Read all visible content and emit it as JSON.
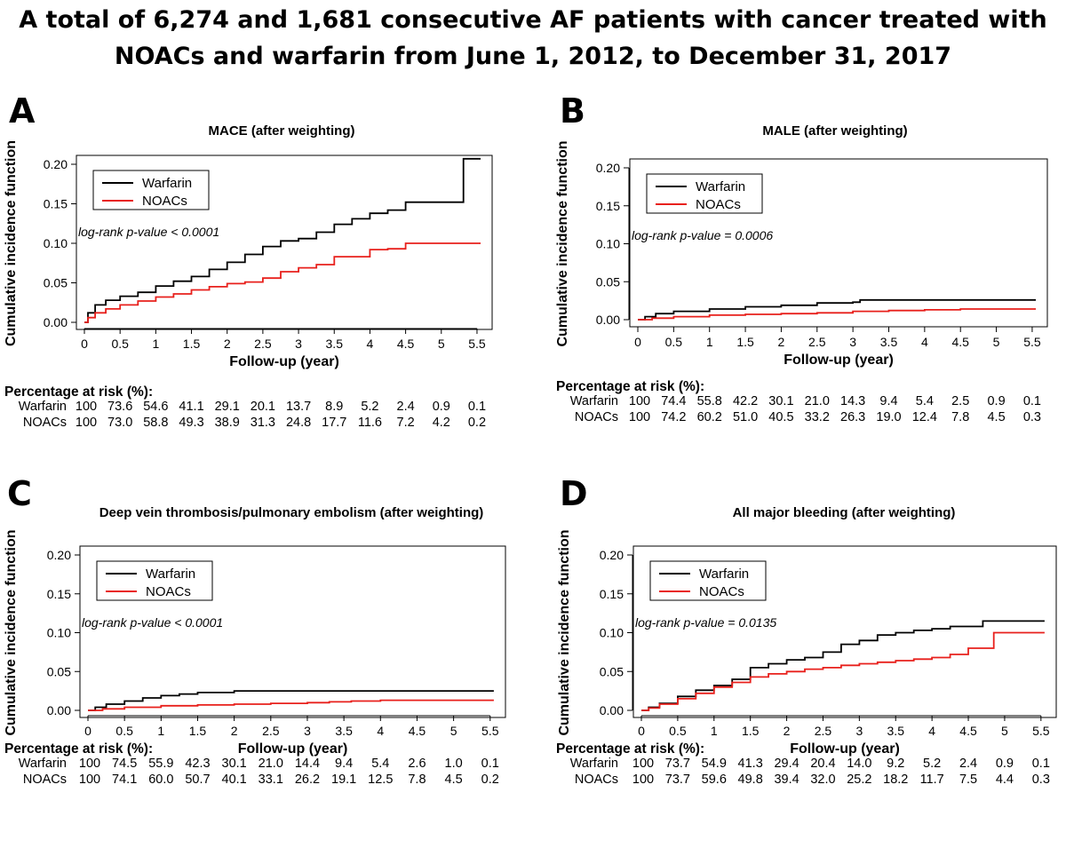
{
  "title": "A total of 6,274 and 1,681 consecutive AF patients with cancer treated with NOACs and warfarin from June 1, 2012, to December 31, 2017",
  "risk_heading": "Percentage at risk (%):",
  "colors": {
    "warfarin": "#000000",
    "noacs": "#e8201c"
  },
  "chart_data": [
    {
      "panel": "A",
      "type": "line",
      "step": true,
      "title": "MACE (after weighting)",
      "xlabel": "Follow-up (year)",
      "ylabel": "Cumulative incidence function",
      "xlim": [
        0,
        5.6
      ],
      "ylim": [
        0,
        0.2
      ],
      "xticks": [
        "0",
        "0.5",
        "1",
        "1.5",
        "2",
        "2.5",
        "3",
        "3.5",
        "4",
        "4.5",
        "5",
        "5.5"
      ],
      "yticks": [
        "0.00",
        "0.05",
        "0.10",
        "0.15",
        "0.20"
      ],
      "legend": [
        "Warfarin",
        "NOACs"
      ],
      "legend_position": "top-left",
      "annotation": "log-rank p-value < 0.0001",
      "series": [
        {
          "name": "Warfarin",
          "color": "#000000",
          "x": [
            0,
            0.05,
            0.15,
            0.3,
            0.5,
            0.75,
            1,
            1.25,
            1.5,
            1.75,
            2,
            2.25,
            2.5,
            2.75,
            3,
            3.25,
            3.5,
            3.75,
            4,
            4.25,
            4.5,
            4.75,
            5,
            5.3,
            5.31,
            5.55
          ],
          "y": [
            0,
            0.012,
            0.022,
            0.028,
            0.033,
            0.038,
            0.046,
            0.052,
            0.058,
            0.067,
            0.076,
            0.086,
            0.096,
            0.103,
            0.106,
            0.114,
            0.124,
            0.131,
            0.138,
            0.142,
            0.152,
            0.152,
            0.152,
            0.152,
            0.207,
            0.207
          ]
        },
        {
          "name": "NOACs",
          "color": "#e8201c",
          "x": [
            0,
            0.05,
            0.15,
            0.3,
            0.5,
            0.75,
            1,
            1.25,
            1.5,
            1.75,
            2,
            2.25,
            2.5,
            2.75,
            3,
            3.25,
            3.5,
            3.75,
            4,
            4.25,
            4.5,
            4.75,
            5,
            5.3,
            5.55
          ],
          "y": [
            0,
            0.006,
            0.012,
            0.017,
            0.022,
            0.027,
            0.032,
            0.036,
            0.041,
            0.045,
            0.049,
            0.051,
            0.056,
            0.064,
            0.069,
            0.073,
            0.083,
            0.083,
            0.092,
            0.093,
            0.1,
            0.1,
            0.1,
            0.1,
            0.1
          ]
        }
      ],
      "risk_table": {
        "columns": [
          "0",
          "0.5",
          "1",
          "1.5",
          "2",
          "2.5",
          "3",
          "3.5",
          "4",
          "4.5",
          "5",
          "5.5"
        ],
        "rows": [
          {
            "group": "Warfarin",
            "values": [
              "100",
              "73.6",
              "54.6",
              "41.1",
              "29.1",
              "20.1",
              "13.7",
              "8.9",
              "5.2",
              "2.4",
              "0.9",
              "0.1"
            ]
          },
          {
            "group": "NOACs",
            "values": [
              "100",
              "73.0",
              "58.8",
              "49.3",
              "38.9",
              "31.3",
              "24.8",
              "17.7",
              "11.6",
              "7.2",
              "4.2",
              "0.2"
            ]
          }
        ]
      }
    },
    {
      "panel": "B",
      "type": "line",
      "step": true,
      "title": "MALE (after weighting)",
      "xlabel": "Follow-up (year)",
      "ylabel": "Cumulative incidence function",
      "xlim": [
        0,
        5.6
      ],
      "ylim": [
        0,
        0.2
      ],
      "xticks": [
        "0",
        "0.5",
        "1",
        "1.5",
        "2",
        "2.5",
        "3",
        "3.5",
        "4",
        "4.5",
        "5",
        "5.5"
      ],
      "yticks": [
        "0.00",
        "0.05",
        "0.10",
        "0.15",
        "0.20"
      ],
      "legend": [
        "Warfarin",
        "NOACs"
      ],
      "legend_position": "top-left",
      "annotation": "log-rank p-value = 0.0006",
      "series": [
        {
          "name": "Warfarin",
          "color": "#000000",
          "x": [
            0,
            0.1,
            0.25,
            0.5,
            1,
            1.5,
            2,
            2.5,
            3,
            3.1,
            4,
            5,
            5.55
          ],
          "y": [
            0,
            0.004,
            0.008,
            0.011,
            0.014,
            0.017,
            0.019,
            0.022,
            0.023,
            0.026,
            0.026,
            0.026,
            0.026
          ]
        },
        {
          "name": "NOACs",
          "color": "#e8201c",
          "x": [
            0,
            0.2,
            0.5,
            1,
            1.5,
            2,
            2.5,
            3,
            3.5,
            4,
            4.5,
            5,
            5.55
          ],
          "y": [
            0,
            0.002,
            0.004,
            0.006,
            0.007,
            0.008,
            0.009,
            0.011,
            0.012,
            0.013,
            0.014,
            0.014,
            0.014
          ]
        }
      ],
      "risk_table": {
        "columns": [
          "0",
          "0.5",
          "1",
          "1.5",
          "2",
          "2.5",
          "3",
          "3.5",
          "4",
          "4.5",
          "5",
          "5.5"
        ],
        "rows": [
          {
            "group": "Warfarin",
            "values": [
              "100",
              "74.4",
              "55.8",
              "42.2",
              "30.1",
              "21.0",
              "14.3",
              "9.4",
              "5.4",
              "2.5",
              "0.9",
              "0.1"
            ]
          },
          {
            "group": "NOACs",
            "values": [
              "100",
              "74.2",
              "60.2",
              "51.0",
              "40.5",
              "33.2",
              "26.3",
              "19.0",
              "12.4",
              "7.8",
              "4.5",
              "0.3"
            ]
          }
        ]
      }
    },
    {
      "panel": "C",
      "type": "line",
      "step": true,
      "title": "Deep vein thrombosis/pulmonary embolism (after weighting)",
      "xlabel": "Follow-up (year)",
      "ylabel": "Cumulative incidence function",
      "xlim": [
        0,
        5.6
      ],
      "ylim": [
        0,
        0.2
      ],
      "xticks": [
        "0",
        "0.5",
        "1",
        "1.5",
        "2",
        "2.5",
        "3",
        "3.5",
        "4",
        "4.5",
        "5",
        "5.5"
      ],
      "yticks": [
        "0.00",
        "0.05",
        "0.10",
        "0.15",
        "0.20"
      ],
      "legend": [
        "Warfarin",
        "NOACs"
      ],
      "legend_position": "top-left",
      "annotation": "log-rank p-value < 0.0001",
      "series": [
        {
          "name": "Warfarin",
          "color": "#000000",
          "x": [
            0,
            0.1,
            0.25,
            0.5,
            0.75,
            1,
            1.25,
            1.5,
            2,
            2.5,
            3,
            4,
            5,
            5.55
          ],
          "y": [
            0,
            0.004,
            0.008,
            0.012,
            0.016,
            0.019,
            0.021,
            0.023,
            0.025,
            0.025,
            0.025,
            0.025,
            0.025,
            0.025
          ]
        },
        {
          "name": "NOACs",
          "color": "#e8201c",
          "x": [
            0,
            0.2,
            0.5,
            1,
            1.5,
            2,
            2.5,
            3,
            3.3,
            3.6,
            4,
            5,
            5.55
          ],
          "y": [
            0,
            0.002,
            0.004,
            0.006,
            0.007,
            0.008,
            0.009,
            0.01,
            0.011,
            0.012,
            0.013,
            0.013,
            0.013
          ]
        }
      ],
      "risk_table": {
        "columns": [
          "0",
          "0.5",
          "1",
          "1.5",
          "2",
          "2.5",
          "3",
          "3.5",
          "4",
          "4.5",
          "5",
          "5.5"
        ],
        "rows": [
          {
            "group": "Warfarin",
            "values": [
              "100",
              "74.5",
              "55.9",
              "42.3",
              "30.1",
              "21.0",
              "14.4",
              "9.4",
              "5.4",
              "2.6",
              "1.0",
              "0.1"
            ]
          },
          {
            "group": "NOACs",
            "values": [
              "100",
              "74.1",
              "60.0",
              "50.7",
              "40.1",
              "33.1",
              "26.2",
              "19.1",
              "12.5",
              "7.8",
              "4.5",
              "0.2"
            ]
          }
        ]
      }
    },
    {
      "panel": "D",
      "type": "line",
      "step": true,
      "title": "All major bleeding (after weighting)",
      "xlabel": "Follow-up (year)",
      "ylabel": "Cumulative incidence function",
      "xlim": [
        0,
        5.6
      ],
      "ylim": [
        0,
        0.2
      ],
      "xticks": [
        "0",
        "0.5",
        "1",
        "1.5",
        "2",
        "2.5",
        "3",
        "3.5",
        "4",
        "4.5",
        "5",
        "5.5"
      ],
      "yticks": [
        "0.00",
        "0.05",
        "0.10",
        "0.15",
        "0.20"
      ],
      "legend": [
        "Warfarin",
        "NOACs"
      ],
      "legend_position": "top-left",
      "annotation": "log-rank p-value = 0.0135",
      "series": [
        {
          "name": "Warfarin",
          "color": "#000000",
          "x": [
            0,
            0.1,
            0.25,
            0.5,
            0.75,
            1,
            1.25,
            1.5,
            1.75,
            2,
            2.25,
            2.5,
            2.75,
            3,
            3.25,
            3.5,
            3.75,
            4,
            4.25,
            4.5,
            4.7,
            4.75,
            5,
            5.55
          ],
          "y": [
            0,
            0.004,
            0.009,
            0.018,
            0.026,
            0.032,
            0.04,
            0.055,
            0.06,
            0.065,
            0.068,
            0.075,
            0.085,
            0.09,
            0.097,
            0.1,
            0.103,
            0.105,
            0.108,
            0.108,
            0.115,
            0.115,
            0.115,
            0.115
          ]
        },
        {
          "name": "NOACs",
          "color": "#e8201c",
          "x": [
            0,
            0.1,
            0.25,
            0.5,
            0.75,
            1,
            1.25,
            1.5,
            1.75,
            2,
            2.25,
            2.5,
            2.75,
            3,
            3.25,
            3.5,
            3.75,
            4,
            4.25,
            4.5,
            4.85,
            5,
            5.55
          ],
          "y": [
            0,
            0.003,
            0.008,
            0.015,
            0.022,
            0.03,
            0.036,
            0.043,
            0.047,
            0.05,
            0.053,
            0.055,
            0.058,
            0.06,
            0.062,
            0.064,
            0.066,
            0.068,
            0.072,
            0.08,
            0.1,
            0.1,
            0.1
          ]
        }
      ],
      "risk_table": {
        "columns": [
          "0",
          "0.5",
          "1",
          "1.5",
          "2",
          "2.5",
          "3",
          "3.5",
          "4",
          "4.5",
          "5",
          "5.5"
        ],
        "rows": [
          {
            "group": "Warfarin",
            "values": [
              "100",
              "73.7",
              "54.9",
              "41.3",
              "29.4",
              "20.4",
              "14.0",
              "9.2",
              "5.2",
              "2.4",
              "0.9",
              "0.1"
            ]
          },
          {
            "group": "NOACs",
            "values": [
              "100",
              "73.7",
              "59.6",
              "49.8",
              "39.4",
              "32.0",
              "25.2",
              "18.2",
              "11.7",
              "7.5",
              "4.4",
              "0.3"
            ]
          }
        ]
      }
    }
  ]
}
